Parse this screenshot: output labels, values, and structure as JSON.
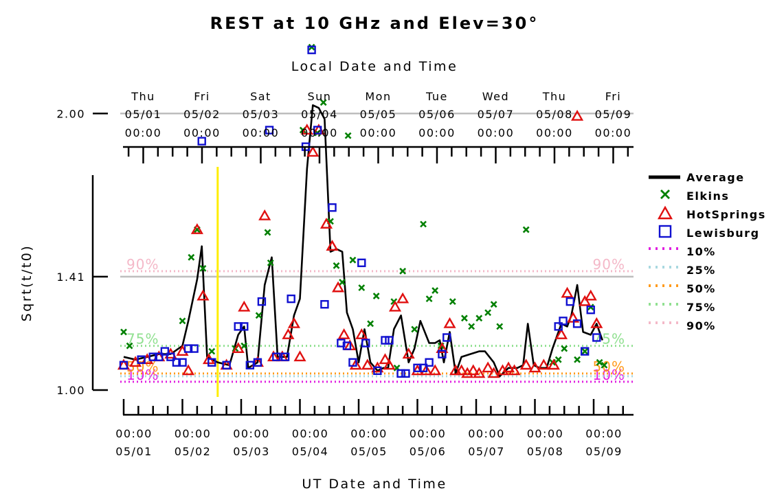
{
  "chart_data": {
    "type": "line",
    "title": "REST at 10 GHz and Elev=30°",
    "top_axis_title": "Local Date and Time",
    "xlabel": "UT Date and Time",
    "ylabel": "Sqrt(t/t0)",
    "y_scale": "linear",
    "ylim": [
      0.96,
      2.26
    ],
    "yticks": [
      1.0,
      1.41,
      2.0
    ],
    "ytick_labels": [
      "1.00",
      "1.41",
      "2.00"
    ],
    "grid": "horizontal at 1.41 and 2.00",
    "x_unit": "days since 05/01 00:00 UT",
    "xlim": [
      0,
      8.75
    ],
    "local_offset_days": 0.333,
    "top_ticks": [
      {
        "day": "Thu",
        "date": "05/01",
        "time": "00:00"
      },
      {
        "day": "Fri",
        "date": "05/02",
        "time": "00:00"
      },
      {
        "day": "Sat",
        "date": "05/03",
        "time": "00:00"
      },
      {
        "day": "Sun",
        "date": "05/04",
        "time": "00:00"
      },
      {
        "day": "Mon",
        "date": "05/05",
        "time": "00:00"
      },
      {
        "day": "Tue",
        "date": "05/06",
        "time": "00:00"
      },
      {
        "day": "Wed",
        "date": "05/07",
        "time": "00:00"
      },
      {
        "day": "Thu",
        "date": "05/08",
        "time": "00:00"
      },
      {
        "day": "Fri",
        "date": "05/09",
        "time": "00:00"
      }
    ],
    "bottom_ticks": [
      {
        "time": "00:00",
        "date": "05/01"
      },
      {
        "time": "00:00",
        "date": "05/02"
      },
      {
        "time": "00:00",
        "date": "05/03"
      },
      {
        "time": "00:00",
        "date": "05/04"
      },
      {
        "time": "00:00",
        "date": "05/05"
      },
      {
        "time": "00:00",
        "date": "05/06"
      },
      {
        "time": "00:00",
        "date": "05/07"
      },
      {
        "time": "00:00",
        "date": "05/08"
      },
      {
        "time": "00:00",
        "date": "05/09"
      }
    ],
    "marker_line": {
      "x": 1.6,
      "color": "#ffee00"
    },
    "percentiles": [
      {
        "name": "10%",
        "y": 1.03,
        "color": "#e01ee0",
        "label": "10%"
      },
      {
        "name": "25%",
        "y": 1.05,
        "color": "#a8d8e0",
        "label": ""
      },
      {
        "name": "50%",
        "y": 1.06,
        "color": "#ff9a1a",
        "label": "50%"
      },
      {
        "name": "75%",
        "y": 1.16,
        "color": "#90e090",
        "label": "75%"
      },
      {
        "name": "90%",
        "y": 1.43,
        "color": "#f4b8c8",
        "label": "90%"
      }
    ],
    "series": [
      {
        "name": "Average",
        "color": "#000000",
        "marker": "line",
        "points": [
          [
            0,
            1.12
          ],
          [
            0.2,
            1.11
          ],
          [
            0.4,
            1.12
          ],
          [
            0.6,
            1.13
          ],
          [
            0.8,
            1.13
          ],
          [
            1.0,
            1.16
          ],
          [
            1.1,
            1.25
          ],
          [
            1.25,
            1.4
          ],
          [
            1.33,
            1.52
          ],
          [
            1.42,
            1.12
          ],
          [
            1.6,
            1.1
          ],
          [
            1.8,
            1.09
          ],
          [
            1.95,
            1.2
          ],
          [
            2.05,
            1.23
          ],
          [
            2.12,
            1.08
          ],
          [
            2.28,
            1.1
          ],
          [
            2.4,
            1.38
          ],
          [
            2.52,
            1.48
          ],
          [
            2.62,
            1.12
          ],
          [
            2.78,
            1.12
          ],
          [
            2.9,
            1.27
          ],
          [
            3.0,
            1.33
          ],
          [
            3.12,
            1.8
          ],
          [
            3.22,
            2.03
          ],
          [
            3.32,
            2.02
          ],
          [
            3.42,
            1.98
          ],
          [
            3.52,
            1.5
          ],
          [
            3.62,
            1.51
          ],
          [
            3.72,
            1.5
          ],
          [
            3.8,
            1.28
          ],
          [
            3.9,
            1.22
          ],
          [
            4.0,
            1.1
          ],
          [
            4.1,
            1.22
          ],
          [
            4.2,
            1.1
          ],
          [
            4.32,
            1.07
          ],
          [
            4.42,
            1.08
          ],
          [
            4.5,
            1.08
          ],
          [
            4.6,
            1.22
          ],
          [
            4.72,
            1.27
          ],
          [
            4.85,
            1.1
          ],
          [
            4.95,
            1.15
          ],
          [
            5.05,
            1.25
          ],
          [
            5.2,
            1.17
          ],
          [
            5.3,
            1.17
          ],
          [
            5.38,
            1.18
          ],
          [
            5.45,
            1.1
          ],
          [
            5.55,
            1.21
          ],
          [
            5.65,
            1.06
          ],
          [
            5.75,
            1.12
          ],
          [
            5.9,
            1.13
          ],
          [
            6.05,
            1.14
          ],
          [
            6.15,
            1.14
          ],
          [
            6.3,
            1.1
          ],
          [
            6.4,
            1.05
          ],
          [
            6.55,
            1.08
          ],
          [
            6.7,
            1.08
          ],
          [
            6.8,
            1.09
          ],
          [
            6.88,
            1.24
          ],
          [
            6.98,
            1.09
          ],
          [
            7.08,
            1.08
          ],
          [
            7.2,
            1.08
          ],
          [
            7.3,
            1.15
          ],
          [
            7.45,
            1.24
          ],
          [
            7.55,
            1.23
          ],
          [
            7.62,
            1.27
          ],
          [
            7.72,
            1.38
          ],
          [
            7.82,
            1.21
          ],
          [
            7.95,
            1.2
          ],
          [
            8.05,
            1.24
          ],
          [
            8.15,
            1.18
          ]
        ]
      },
      {
        "name": "Elkins",
        "color": "#008000",
        "marker": "x",
        "points": [
          [
            0,
            1.21
          ],
          [
            0.1,
            1.16
          ],
          [
            1.0,
            1.25
          ],
          [
            1.15,
            1.48
          ],
          [
            1.25,
            1.58
          ],
          [
            1.35,
            1.44
          ],
          [
            1.5,
            1.14
          ],
          [
            1.9,
            1.15
          ],
          [
            2.05,
            1.16
          ],
          [
            2.3,
            1.27
          ],
          [
            2.45,
            1.57
          ],
          [
            2.5,
            1.46
          ],
          [
            3.05,
            1.94
          ],
          [
            3.2,
            2.24
          ],
          [
            3.3,
            1.93
          ],
          [
            3.4,
            2.04
          ],
          [
            3.52,
            1.61
          ],
          [
            3.62,
            1.45
          ],
          [
            3.72,
            1.39
          ],
          [
            3.82,
            1.92
          ],
          [
            3.9,
            1.47
          ],
          [
            4.05,
            1.37
          ],
          [
            4.2,
            1.24
          ],
          [
            4.3,
            1.34
          ],
          [
            4.6,
            1.32
          ],
          [
            4.65,
            1.08
          ],
          [
            4.75,
            1.43
          ],
          [
            4.95,
            1.22
          ],
          [
            5.1,
            1.6
          ],
          [
            5.2,
            1.33
          ],
          [
            5.3,
            1.36
          ],
          [
            5.4,
            1.16
          ],
          [
            5.6,
            1.32
          ],
          [
            5.8,
            1.26
          ],
          [
            5.92,
            1.23
          ],
          [
            6.05,
            1.26
          ],
          [
            6.2,
            1.28
          ],
          [
            6.3,
            1.31
          ],
          [
            6.4,
            1.23
          ],
          [
            6.85,
            1.58
          ],
          [
            7.3,
            1.1
          ],
          [
            7.4,
            1.11
          ],
          [
            7.5,
            1.15
          ],
          [
            7.72,
            1.11
          ],
          [
            7.85,
            1.14
          ],
          [
            7.95,
            1.3
          ],
          [
            8.1,
            1.1
          ],
          [
            8.18,
            1.09
          ]
        ]
      },
      {
        "name": "HotSprings",
        "color": "#e01010",
        "marker": "triangle",
        "points": [
          [
            0,
            1.09
          ],
          [
            0.2,
            1.1
          ],
          [
            0.4,
            1.11
          ],
          [
            0.6,
            1.12
          ],
          [
            0.8,
            1.13
          ],
          [
            1.0,
            1.14
          ],
          [
            1.1,
            1.07
          ],
          [
            1.25,
            1.58
          ],
          [
            1.35,
            1.34
          ],
          [
            1.45,
            1.11
          ],
          [
            1.75,
            1.09
          ],
          [
            1.95,
            1.15
          ],
          [
            2.05,
            1.3
          ],
          [
            2.28,
            1.1
          ],
          [
            2.4,
            1.63
          ],
          [
            2.55,
            1.12
          ],
          [
            2.7,
            1.12
          ],
          [
            2.8,
            1.2
          ],
          [
            2.9,
            1.24
          ],
          [
            3.0,
            1.12
          ],
          [
            3.12,
            1.94
          ],
          [
            3.22,
            1.86
          ],
          [
            3.32,
            1.94
          ],
          [
            3.45,
            1.6
          ],
          [
            3.55,
            1.52
          ],
          [
            3.65,
            1.37
          ],
          [
            3.75,
            1.2
          ],
          [
            3.85,
            1.16
          ],
          [
            3.95,
            1.09
          ],
          [
            4.05,
            1.2
          ],
          [
            4.15,
            1.09
          ],
          [
            4.32,
            1.08
          ],
          [
            4.45,
            1.11
          ],
          [
            4.52,
            1.09
          ],
          [
            4.62,
            1.3
          ],
          [
            4.75,
            1.33
          ],
          [
            4.85,
            1.13
          ],
          [
            5.0,
            1.07
          ],
          [
            5.15,
            1.07
          ],
          [
            5.3,
            1.07
          ],
          [
            5.42,
            1.15
          ],
          [
            5.55,
            1.24
          ],
          [
            5.65,
            1.07
          ],
          [
            5.75,
            1.07
          ],
          [
            5.85,
            1.06
          ],
          [
            5.95,
            1.07
          ],
          [
            6.05,
            1.06
          ],
          [
            6.2,
            1.08
          ],
          [
            6.3,
            1.06
          ],
          [
            6.45,
            1.07
          ],
          [
            6.55,
            1.08
          ],
          [
            6.65,
            1.07
          ],
          [
            6.85,
            1.09
          ],
          [
            7.0,
            1.08
          ],
          [
            7.15,
            1.09
          ],
          [
            7.32,
            1.09
          ],
          [
            7.45,
            1.2
          ],
          [
            7.55,
            1.35
          ],
          [
            7.65,
            1.26
          ],
          [
            7.72,
            1.99
          ],
          [
            7.85,
            1.32
          ],
          [
            7.95,
            1.34
          ],
          [
            8.05,
            1.24
          ]
        ]
      },
      {
        "name": "Lewisburg",
        "color": "#1010d0",
        "marker": "square",
        "points": [
          [
            0,
            1.09
          ],
          [
            0.3,
            1.11
          ],
          [
            0.5,
            1.12
          ],
          [
            0.6,
            1.12
          ],
          [
            0.7,
            1.14
          ],
          [
            0.8,
            1.12
          ],
          [
            0.9,
            1.1
          ],
          [
            1.0,
            1.1
          ],
          [
            1.1,
            1.15
          ],
          [
            1.2,
            1.15
          ],
          [
            1.33,
            1.9
          ],
          [
            1.5,
            1.1
          ],
          [
            1.75,
            1.09
          ],
          [
            1.95,
            1.23
          ],
          [
            2.05,
            1.23
          ],
          [
            2.15,
            1.09
          ],
          [
            2.28,
            1.1
          ],
          [
            2.35,
            1.32
          ],
          [
            2.48,
            1.94
          ],
          [
            2.6,
            1.12
          ],
          [
            2.75,
            1.12
          ],
          [
            2.85,
            1.33
          ],
          [
            3.1,
            1.88
          ],
          [
            3.2,
            2.23
          ],
          [
            3.3,
            1.94
          ],
          [
            3.42,
            1.31
          ],
          [
            3.55,
            1.66
          ],
          [
            3.7,
            1.17
          ],
          [
            3.8,
            1.16
          ],
          [
            3.9,
            1.1
          ],
          [
            4.05,
            1.46
          ],
          [
            4.12,
            1.17
          ],
          [
            4.32,
            1.07
          ],
          [
            4.45,
            1.18
          ],
          [
            4.52,
            1.18
          ],
          [
            4.72,
            1.06
          ],
          [
            4.8,
            1.06
          ],
          [
            5.0,
            1.08
          ],
          [
            5.1,
            1.08
          ],
          [
            5.2,
            1.1
          ],
          [
            5.42,
            1.13
          ],
          [
            5.5,
            1.19
          ],
          [
            7.4,
            1.23
          ],
          [
            7.48,
            1.25
          ],
          [
            7.6,
            1.32
          ],
          [
            7.72,
            1.24
          ],
          [
            7.85,
            1.14
          ],
          [
            7.95,
            1.29
          ],
          [
            8.05,
            1.19
          ]
        ]
      }
    ],
    "legend": {
      "placement": "right",
      "entries": [
        {
          "label": "Average",
          "color": "#000000",
          "marker": "line"
        },
        {
          "label": "Elkins",
          "color": "#008000",
          "marker": "x"
        },
        {
          "label": "HotSprings",
          "color": "#e01010",
          "marker": "triangle"
        },
        {
          "label": "Lewisburg",
          "color": "#1010d0",
          "marker": "square"
        },
        {
          "label": "10%",
          "color": "#e01ee0",
          "marker": "dotted"
        },
        {
          "label": "25%",
          "color": "#a8d8e0",
          "marker": "dotted"
        },
        {
          "label": "50%",
          "color": "#ff9a1a",
          "marker": "dotted"
        },
        {
          "label": "75%",
          "color": "#90e090",
          "marker": "dotted"
        },
        {
          "label": "90%",
          "color": "#f4b8c8",
          "marker": "dotted"
        }
      ]
    }
  }
}
